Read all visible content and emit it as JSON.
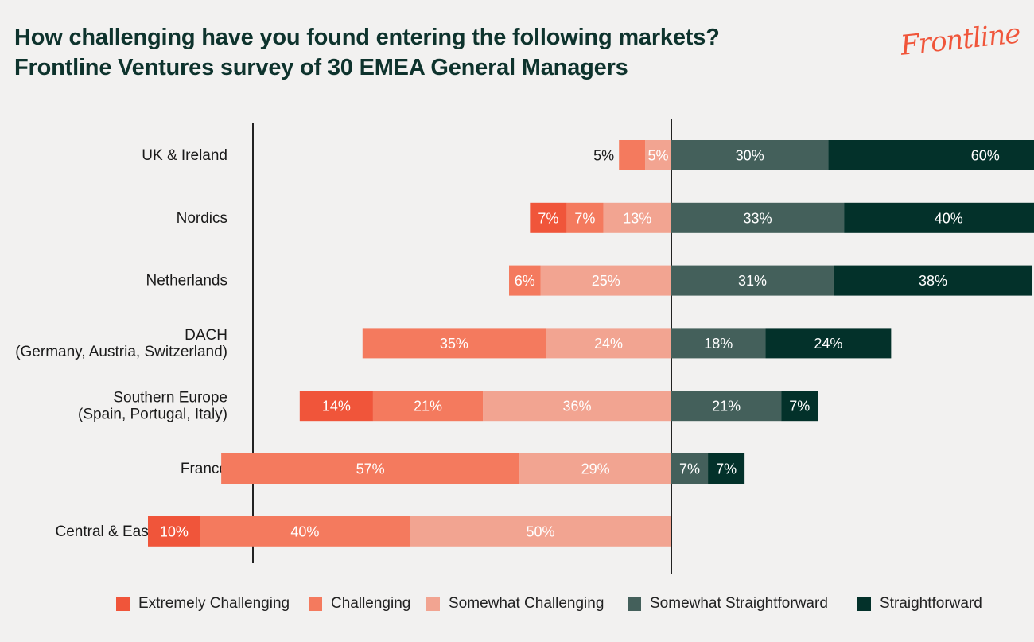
{
  "header": {
    "title_line1": "How challenging have you found entering the following markets?",
    "title_line2": "Frontline Ventures survey of 30 EMEA General Managers",
    "logo_text": "Frontline"
  },
  "colors": {
    "extremely_challenging": "#f0553a",
    "challenging": "#f47a5e",
    "somewhat_challenging": "#f2a491",
    "somewhat_straightforward": "#44605b",
    "straightforward": "#03312a",
    "axis": "#222222"
  },
  "chart_data": {
    "type": "bar",
    "orientation": "horizontal",
    "stacked": true,
    "diverging": true,
    "title": "How challenging have you found entering the following markets?",
    "categories": [
      [
        "UK & Ireland"
      ],
      [
        "Nordics"
      ],
      [
        "Netherlands"
      ],
      [
        "DACH",
        "(Germany, Austria, Switzerland)"
      ],
      [
        "Southern Europe",
        "(Spain, Portugal, Italy)"
      ],
      [
        "France"
      ],
      [
        "Central & Eastern Europe"
      ]
    ],
    "series": [
      {
        "name": "Extremely Challenging",
        "side": "negative",
        "color_key": "extremely_challenging",
        "values": [
          0,
          7,
          0,
          0,
          14,
          0,
          10
        ],
        "labels": [
          "",
          "7%",
          "",
          "",
          "14%",
          "",
          "10%"
        ]
      },
      {
        "name": "Challenging",
        "side": "negative",
        "color_key": "challenging",
        "values": [
          5,
          7,
          6,
          35,
          21,
          57,
          40
        ],
        "labels": [
          "5%",
          "7%",
          "6%",
          "35%",
          "21%",
          "57%",
          "40%"
        ]
      },
      {
        "name": "Somewhat Challenging",
        "side": "negative",
        "color_key": "somewhat_challenging",
        "values": [
          5,
          13,
          25,
          24,
          36,
          29,
          50
        ],
        "labels": [
          "5%",
          "13%",
          "25%",
          "24%",
          "36%",
          "29%",
          "50%"
        ]
      },
      {
        "name": "Somewhat Straightforward",
        "side": "positive",
        "color_key": "somewhat_straightforward",
        "values": [
          30,
          33,
          31,
          18,
          21,
          7,
          0
        ],
        "labels": [
          "30%",
          "33%",
          "31%",
          "18%",
          "21%",
          "7%",
          ""
        ]
      },
      {
        "name": "Straightforward",
        "side": "positive",
        "color_key": "straightforward",
        "values": [
          60,
          40,
          38,
          24,
          7,
          7,
          0
        ],
        "labels": [
          "60%",
          "40%",
          "38%",
          "24%",
          "7%",
          "7%",
          ""
        ]
      }
    ],
    "legend": {
      "position": "bottom",
      "items": [
        "Extremely Challenging",
        "Challenging",
        "Somewhat Challenging",
        "Somewhat Straightforward",
        "Straightforward"
      ]
    },
    "xlim": [
      -100,
      100
    ],
    "unit": "%"
  }
}
